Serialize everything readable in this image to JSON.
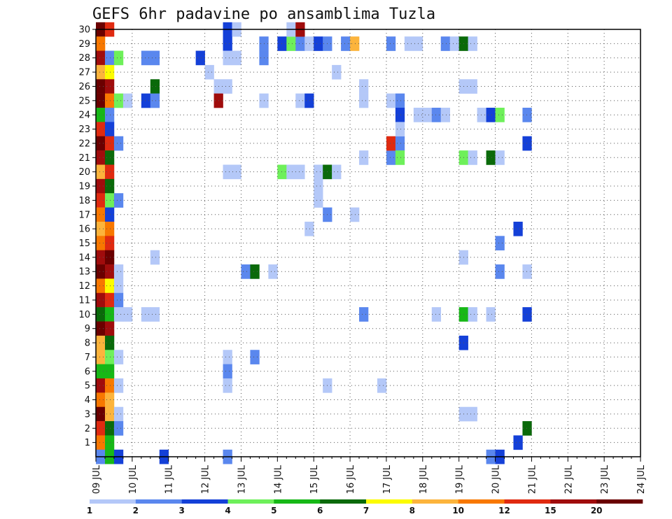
{
  "chart_data": {
    "type": "heatmap",
    "title": "GEFS 6hr padavine po ansamblima Tuzla",
    "x_unit": "6-hour step from 09 JUL 00Z",
    "x_range": [
      0,
      60
    ],
    "y_range": [
      0,
      30
    ],
    "x_ticks": [
      "09 JUL",
      "10 JUL",
      "11 JUL",
      "12 JUL",
      "13 JUL",
      "14 JUL",
      "15 JUL",
      "16 JUL",
      "17 JUL",
      "18 JUL",
      "19 JUL",
      "20 JUL",
      "21 JUL",
      "22 JUL",
      "23 JUL",
      "24 JUL"
    ],
    "y_ticks": [
      "1",
      "2",
      "3",
      "4",
      "5",
      "6",
      "7",
      "8",
      "9",
      "10",
      "11",
      "12",
      "13",
      "14",
      "15",
      "16",
      "17",
      "18",
      "19",
      "20",
      "21",
      "22",
      "23",
      "24",
      "25",
      "26",
      "27",
      "28",
      "29",
      "30"
    ],
    "grid": true,
    "legend": {
      "placement": "bottom",
      "labels": [
        "1",
        "2",
        "3",
        "4",
        "5",
        "6",
        "7",
        "8",
        "10",
        "12",
        "15",
        "20"
      ],
      "colors": [
        "#b4c8f8",
        "#5a87ee",
        "#1440d8",
        "#6ef05a",
        "#17b817",
        "#0a6a0a",
        "#fcfc00",
        "#fcb43c",
        "#f87800",
        "#e02a10",
        "#a00c0c",
        "#6a0000"
      ]
    },
    "cells": [
      [
        0,
        30,
        11
      ],
      [
        1,
        30,
        9
      ],
      [
        0,
        29,
        8
      ],
      [
        0,
        28,
        10
      ],
      [
        1,
        28,
        1
      ],
      [
        2,
        28,
        3
      ],
      [
        0,
        27,
        7
      ],
      [
        1,
        27,
        6
      ],
      [
        0,
        26,
        11
      ],
      [
        1,
        26,
        10
      ],
      [
        0,
        25,
        11
      ],
      [
        1,
        25,
        8
      ],
      [
        2,
        25,
        3
      ],
      [
        3,
        25,
        0
      ],
      [
        0,
        24,
        4
      ],
      [
        1,
        24,
        1
      ],
      [
        0,
        23,
        9
      ],
      [
        1,
        23,
        2
      ],
      [
        0,
        22,
        11
      ],
      [
        1,
        22,
        9
      ],
      [
        2,
        22,
        1
      ],
      [
        0,
        21,
        10
      ],
      [
        1,
        21,
        5
      ],
      [
        0,
        20,
        7
      ],
      [
        1,
        20,
        9
      ],
      [
        0,
        19,
        10
      ],
      [
        1,
        19,
        5
      ],
      [
        0,
        18,
        9
      ],
      [
        1,
        18,
        3
      ],
      [
        2,
        18,
        1
      ],
      [
        0,
        17,
        8
      ],
      [
        1,
        17,
        2
      ],
      [
        0,
        16,
        7
      ],
      [
        1,
        16,
        8
      ],
      [
        0,
        15,
        8
      ],
      [
        1,
        15,
        9
      ],
      [
        0,
        14,
        10
      ],
      [
        1,
        14,
        11
      ],
      [
        0,
        13,
        11
      ],
      [
        1,
        13,
        10
      ],
      [
        2,
        13,
        0
      ],
      [
        0,
        12,
        8
      ],
      [
        1,
        12,
        6
      ],
      [
        2,
        12,
        0
      ],
      [
        0,
        11,
        10
      ],
      [
        1,
        11,
        9
      ],
      [
        2,
        11,
        1
      ],
      [
        0,
        10,
        5
      ],
      [
        1,
        10,
        4
      ],
      [
        2,
        10,
        0
      ],
      [
        3,
        10,
        0
      ],
      [
        0,
        9,
        11
      ],
      [
        1,
        9,
        10
      ],
      [
        0,
        8,
        7
      ],
      [
        1,
        8,
        5
      ],
      [
        0,
        7,
        7
      ],
      [
        1,
        7,
        3
      ],
      [
        2,
        7,
        0
      ],
      [
        0,
        6,
        4
      ],
      [
        1,
        6,
        4
      ],
      [
        0,
        5,
        10
      ],
      [
        1,
        5,
        8
      ],
      [
        2,
        5,
        0
      ],
      [
        0,
        4,
        8
      ],
      [
        1,
        4,
        7
      ],
      [
        0,
        3,
        11
      ],
      [
        1,
        3,
        7
      ],
      [
        2,
        3,
        0
      ],
      [
        0,
        2,
        9
      ],
      [
        1,
        2,
        5
      ],
      [
        2,
        2,
        1
      ],
      [
        0,
        1,
        8
      ],
      [
        1,
        1,
        4
      ],
      [
        0,
        0,
        1
      ],
      [
        1,
        0,
        4
      ],
      [
        2,
        0,
        2
      ],
      [
        5,
        28,
        1
      ],
      [
        6,
        28,
        1
      ],
      [
        11,
        28,
        2
      ],
      [
        6,
        26,
        5
      ],
      [
        5,
        25,
        2
      ],
      [
        6,
        25,
        1
      ],
      [
        6,
        14,
        0
      ],
      [
        5,
        10,
        0
      ],
      [
        6,
        10,
        0
      ],
      [
        7,
        0,
        2
      ],
      [
        12,
        27,
        0
      ],
      [
        13,
        26,
        0
      ],
      [
        13,
        25,
        10
      ],
      [
        14,
        26,
        0
      ],
      [
        14,
        30,
        2
      ],
      [
        15,
        30,
        0
      ],
      [
        14,
        29,
        2
      ],
      [
        14,
        28,
        0
      ],
      [
        15,
        28,
        0
      ],
      [
        14,
        20,
        0
      ],
      [
        15,
        20,
        0
      ],
      [
        14,
        7,
        0
      ],
      [
        14,
        6,
        1
      ],
      [
        14,
        5,
        0
      ],
      [
        14,
        0,
        1
      ],
      [
        16,
        13,
        1
      ],
      [
        17,
        13,
        5
      ],
      [
        17,
        7,
        1
      ],
      [
        18,
        29,
        1
      ],
      [
        18,
        28,
        1
      ],
      [
        18,
        25,
        0
      ],
      [
        19,
        13,
        0
      ],
      [
        20,
        29,
        2
      ],
      [
        21,
        29,
        3
      ],
      [
        21,
        30,
        0
      ],
      [
        22,
        29,
        1
      ],
      [
        22,
        30,
        10
      ],
      [
        20,
        20,
        3
      ],
      [
        21,
        20,
        0
      ],
      [
        22,
        20,
        0
      ],
      [
        22,
        25,
        0
      ],
      [
        23,
        25,
        2
      ],
      [
        23,
        29,
        0
      ],
      [
        23,
        16,
        0
      ],
      [
        24,
        29,
        2
      ],
      [
        25,
        29,
        1
      ],
      [
        24,
        20,
        0
      ],
      [
        24,
        19,
        0
      ],
      [
        24,
        18,
        0
      ],
      [
        25,
        20,
        5
      ],
      [
        26,
        20,
        0
      ],
      [
        25,
        17,
        1
      ],
      [
        26,
        27,
        0
      ],
      [
        25,
        5,
        0
      ],
      [
        27,
        29,
        1
      ],
      [
        28,
        29,
        7
      ],
      [
        28,
        17,
        0
      ],
      [
        29,
        26,
        0
      ],
      [
        29,
        25,
        0
      ],
      [
        29,
        21,
        0
      ],
      [
        29,
        10,
        1
      ],
      [
        31,
        5,
        0
      ],
      [
        32,
        29,
        1
      ],
      [
        32,
        25,
        0
      ],
      [
        32,
        21,
        1
      ],
      [
        32,
        22,
        9
      ],
      [
        33,
        22,
        1
      ],
      [
        33,
        21,
        3
      ],
      [
        33,
        25,
        1
      ],
      [
        33,
        24,
        2
      ],
      [
        33,
        23,
        0
      ],
      [
        34,
        29,
        0
      ],
      [
        35,
        29,
        0
      ],
      [
        35,
        24,
        0
      ],
      [
        36,
        24,
        0
      ],
      [
        37,
        24,
        1
      ],
      [
        38,
        24,
        0
      ],
      [
        37,
        10,
        0
      ],
      [
        38,
        29,
        1
      ],
      [
        39,
        29,
        0
      ],
      [
        40,
        29,
        5
      ],
      [
        40,
        21,
        3
      ],
      [
        40,
        10,
        4
      ],
      [
        40,
        8,
        2
      ],
      [
        40,
        14,
        0
      ],
      [
        40,
        3,
        0
      ],
      [
        41,
        3,
        0
      ],
      [
        41,
        26,
        0
      ],
      [
        40,
        26,
        0
      ],
      [
        41,
        21,
        0
      ],
      [
        41,
        10,
        0
      ],
      [
        41,
        29,
        0
      ],
      [
        42,
        24,
        0
      ],
      [
        43,
        24,
        2
      ],
      [
        44,
        24,
        3
      ],
      [
        43,
        21,
        5
      ],
      [
        44,
        21,
        0
      ],
      [
        43,
        10,
        0
      ],
      [
        44,
        13,
        1
      ],
      [
        44,
        15,
        1
      ],
      [
        43,
        0,
        1
      ],
      [
        44,
        0,
        2
      ],
      [
        46,
        16,
        2
      ],
      [
        46,
        1,
        2
      ],
      [
        47,
        24,
        1
      ],
      [
        47,
        22,
        2
      ],
      [
        47,
        13,
        0
      ],
      [
        47,
        10,
        2
      ],
      [
        47,
        2,
        5
      ]
    ]
  }
}
